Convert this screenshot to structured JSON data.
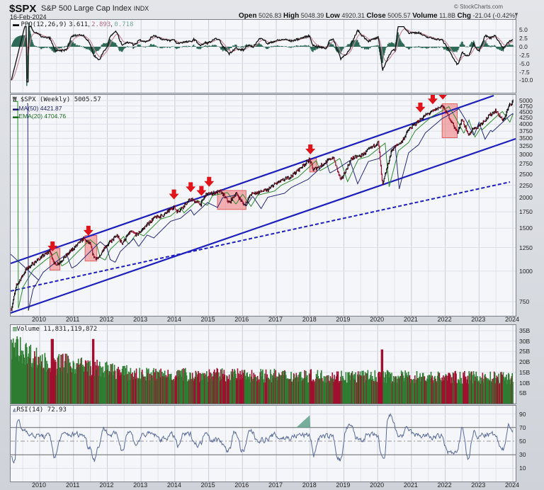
{
  "header": {
    "symbol": "$SPX",
    "name": "S&P 500 Large Cap Index",
    "exchange": "INDX",
    "date": "16-Feb-2024",
    "copyright": "© StockCharts.com",
    "open_label": "Open",
    "open": "5026.83",
    "high_label": "High",
    "high": "5048.39",
    "low_label": "Low",
    "low": "4920.31",
    "close_label": "Close",
    "close": "5005.57",
    "volume_label": "Volume",
    "volume": "11.8B",
    "chg_label": "Chg",
    "chg": "-21.04 (-0.42%)",
    "chg_arrow": "▼"
  },
  "ppo": {
    "label": "PPO(12,26,9)",
    "v1": "3.611",
    "v2": "2.893",
    "v3": "0.718",
    "ticks": [
      "5.0",
      "2.5",
      "0.0",
      "-2.5",
      "-5.0",
      "-7.5",
      "-10.0"
    ]
  },
  "price": {
    "label": "$SPX (Weekly) 5005.57",
    "ma": "MA(50) 4421.87",
    "ema": "EMA(20) 4704.76",
    "ticks": [
      "5000",
      "4750",
      "4500",
      "4250",
      "4000",
      "3750",
      "3500",
      "3250",
      "3000",
      "2750",
      "2500",
      "2250",
      "2000",
      "1750",
      "1500",
      "1250",
      "1000",
      "750"
    ]
  },
  "volume": {
    "label": "Volume 11,831,119,872",
    "ticks": [
      "35B",
      "30B",
      "25B",
      "20B",
      "15B",
      "10B",
      "5B"
    ]
  },
  "rsi": {
    "label": "RSI(14) 72.93",
    "ticks": [
      "90",
      "70",
      "50",
      "30",
      "10"
    ]
  },
  "years": [
    "2010",
    "2011",
    "2012",
    "2013",
    "2014",
    "2015",
    "2016",
    "2017",
    "2018",
    "2019",
    "2020",
    "2021",
    "2022",
    "2023",
    "2024"
  ],
  "colors": {
    "up": "#2e7d32",
    "down": "#a0102e",
    "channel": "#1f1fbf",
    "box": "#f08080",
    "arrow": "#e0141a",
    "ppo_hist": "#2f6b57",
    "rsi": "#5a6a9a"
  },
  "chart_data": [
    {
      "type": "line",
      "title": "$SPX S&P 500 Large Cap Index (Weekly) - Price with MA(50), EMA(20), trend channel",
      "x": [
        "2009",
        "2010",
        "2011",
        "2012",
        "2013",
        "2014",
        "2015",
        "2016",
        "2017",
        "2018",
        "2019",
        "2020",
        "2021",
        "2022",
        "2023",
        "2024"
      ],
      "series": [
        {
          "name": "$SPX close",
          "values": [
            700,
            1120,
            1280,
            1300,
            1500,
            1830,
            2050,
            2020,
            2270,
            2700,
            2500,
            3230,
            3750,
            4770,
            3840,
            5005
          ]
        },
        {
          "name": "MA(50)",
          "values": [
            null,
            1000,
            1220,
            1260,
            1400,
            1700,
            1980,
            2040,
            2150,
            2550,
            2650,
            2950,
            3300,
            4250,
            4100,
            4421.87
          ]
        },
        {
          "name": "EMA(20)",
          "values": [
            null,
            1080,
            1270,
            1290,
            1470,
            1790,
            2040,
            2010,
            2250,
            2680,
            2600,
            3100,
            3650,
            4600,
            3900,
            4704.76
          ]
        }
      ],
      "annotations": [
        "red down arrows at channel-top touches: 2010, 2011, 2014, 2014.5, 2014.9, 2015.1, 2018, 2021.3, 2021.7, 2022.0",
        "red shaded correction boxes: 2010, 2011, 2015-2016, 2018, 2022"
      ],
      "ylim": [
        650,
        5300
      ],
      "yscale": "log"
    },
    {
      "type": "line",
      "title": "PPO(12,26,9)",
      "series": [
        {
          "name": "PPO",
          "last": 3.611
        },
        {
          "name": "Signal",
          "last": 2.893
        },
        {
          "name": "Histogram",
          "last": 0.718
        }
      ],
      "ylim": [
        -11,
        6
      ]
    },
    {
      "type": "bar",
      "title": "Volume",
      "last": 11831119872,
      "ylim": [
        0,
        35000000000
      ]
    },
    {
      "type": "line",
      "title": "RSI(14)",
      "last": 72.93,
      "ylim": [
        0,
        100
      ],
      "levels": [
        70,
        50,
        30
      ]
    }
  ]
}
